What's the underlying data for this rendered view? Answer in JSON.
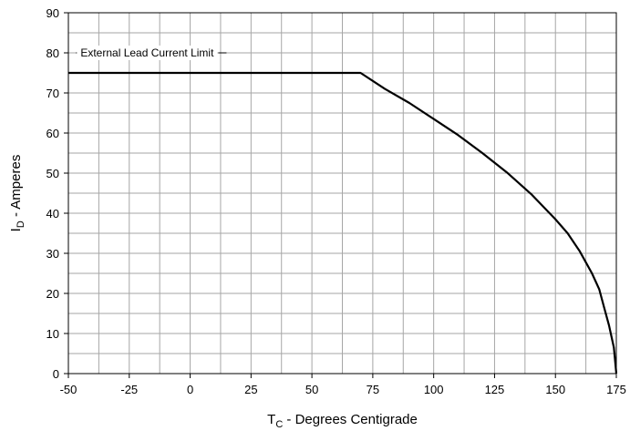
{
  "chart_data": {
    "type": "line",
    "title": "",
    "xlabel": {
      "main": "T",
      "sub": "C",
      "rest": " - Degrees Centigrade"
    },
    "ylabel": {
      "main": "I",
      "sub": "D",
      "rest": " - Amperes"
    },
    "xlim": [
      -50,
      175
    ],
    "ylim": [
      0,
      90
    ],
    "xticks": [
      -50,
      -25,
      0,
      25,
      50,
      75,
      100,
      125,
      150,
      175
    ],
    "yticks": [
      0,
      10,
      20,
      30,
      40,
      50,
      60,
      70,
      80,
      90
    ],
    "x_minor_step": 12.5,
    "y_minor_step": 5,
    "grid": true,
    "annotation": {
      "text": "External Lead Current Limit",
      "x": -45,
      "y": 80
    },
    "series": [
      {
        "x": [
          -50,
          70,
          80,
          90,
          100,
          110,
          120,
          130,
          140,
          150,
          155,
          160,
          165,
          168,
          170,
          172,
          174,
          175
        ],
        "y": [
          75,
          75,
          71,
          67.5,
          63.5,
          59.5,
          55,
          50.2,
          44.8,
          38.5,
          35,
          30.5,
          25,
          21,
          16.5,
          12,
          6.5,
          0
        ],
        "color": "#000000"
      }
    ]
  }
}
